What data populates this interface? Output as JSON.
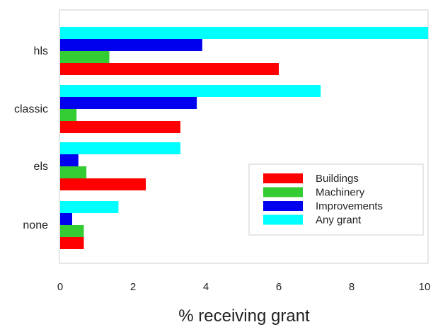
{
  "chart_data": {
    "type": "bar",
    "orientation": "horizontal",
    "categories": [
      "hls",
      "classic",
      "els",
      "none"
    ],
    "series": [
      {
        "name": "Buildings",
        "color": "#ff0000",
        "values": [
          6.0,
          3.3,
          2.35,
          0.65
        ]
      },
      {
        "name": "Machinery",
        "color": "#33cc33",
        "values": [
          1.35,
          0.45,
          0.72,
          0.65
        ]
      },
      {
        "name": "Improvements",
        "color": "#0000ee",
        "values": [
          3.9,
          3.75,
          0.5,
          0.33
        ]
      },
      {
        "name": "Any grant",
        "color": "#00ffff",
        "values": [
          10.1,
          7.15,
          3.3,
          1.6
        ]
      }
    ],
    "x_ticks": [
      0,
      2,
      4,
      6,
      8,
      10
    ],
    "xlim": [
      0,
      10.2
    ],
    "xlabel": "% receiving grant",
    "ylabel": "",
    "title": "",
    "grid": false,
    "legend_position": "lower-right"
  }
}
